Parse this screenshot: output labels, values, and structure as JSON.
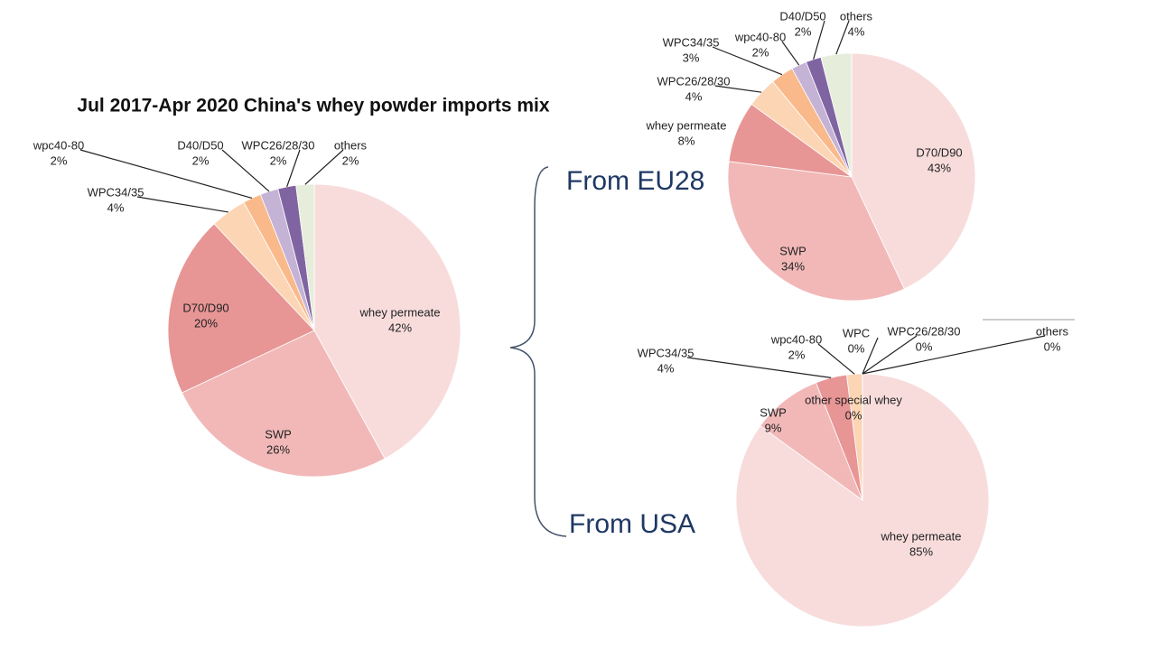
{
  "chart_data": [
    {
      "type": "pie",
      "title": "Jul 2017-Apr 2020 China's whey powder imports mix",
      "categories": [
        "whey permeate",
        "SWP",
        "D70/D90",
        "WPC34/35",
        "wpc40-80",
        "D40/D50",
        "WPC26/28/30",
        "others"
      ],
      "values": [
        42,
        26,
        20,
        4,
        2,
        2,
        2,
        2
      ],
      "value_labels": [
        "42%",
        "26%",
        "20%",
        "4%",
        "2%",
        "2%",
        "2%",
        "2%"
      ],
      "colors": [
        "#f8dcdc",
        "#f2b8b8",
        "#e89595",
        "#fcd5b5",
        "#fab98a",
        "#c5b3d6",
        "#8064a2",
        "#e6eedb"
      ]
    },
    {
      "type": "pie",
      "title": "From EU28",
      "categories": [
        "D70/D90",
        "SWP",
        "whey permeate",
        "WPC26/28/30",
        "WPC34/35",
        "wpc40-80",
        "D40/D50",
        "others"
      ],
      "values": [
        43,
        34,
        8,
        4,
        3,
        2,
        2,
        4
      ],
      "value_labels": [
        "43%",
        "34%",
        "8%",
        "4%",
        "3%",
        "2%",
        "2%",
        "4%"
      ],
      "colors": [
        "#f8dcdc",
        "#f2b8b8",
        "#e89595",
        "#fcd5b5",
        "#fab98a",
        "#c5b3d6",
        "#8064a2",
        "#e6eedb"
      ]
    },
    {
      "type": "pie",
      "title": "From USA",
      "categories": [
        "whey permeate",
        "SWP",
        "WPC34/35",
        "wpc40-80",
        "other special whey",
        "WPC",
        "WPC26/28/30",
        "others"
      ],
      "values": [
        85,
        9,
        4,
        2,
        0,
        0,
        0,
        0
      ],
      "value_labels": [
        "85%",
        "9%",
        "4%",
        "2%",
        "0%",
        "0%",
        "0%",
        "0%"
      ],
      "colors": [
        "#f8dcdc",
        "#f2b8b8",
        "#e89595",
        "#fcd5b5",
        "#fab98a",
        "#c5b3d6",
        "#8064a2",
        "#e6eedb"
      ]
    }
  ]
}
